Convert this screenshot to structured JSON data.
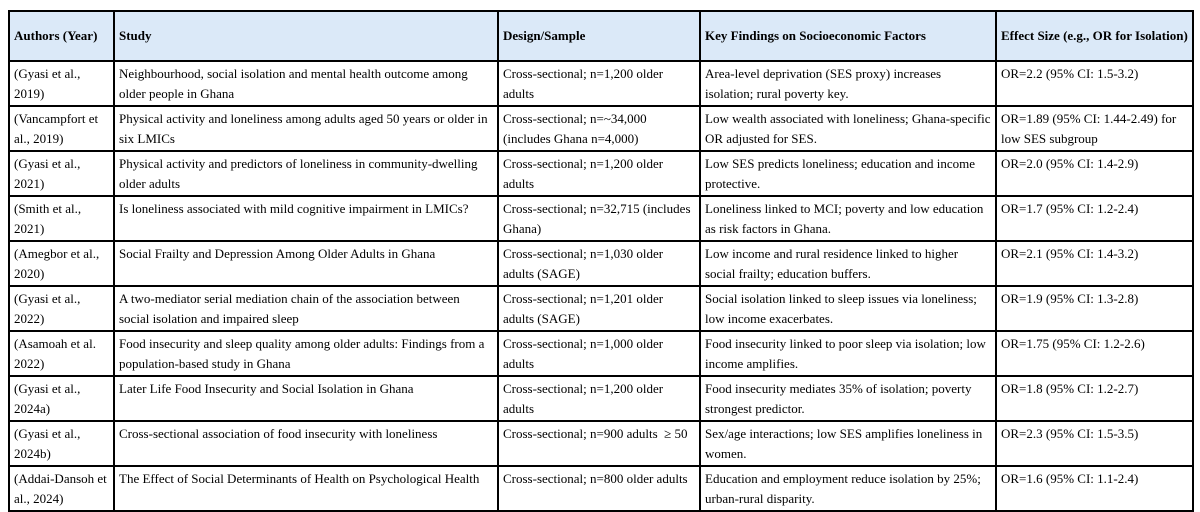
{
  "colors": {
    "header_bg": "#dbe9f8",
    "border": "#000000",
    "text": "#000000"
  },
  "table": {
    "columns": [
      {
        "label": "Authors (Year)"
      },
      {
        "label": "Study"
      },
      {
        "label": "Design/Sample"
      },
      {
        "label": "Key Findings on Socioeconomic Factors"
      },
      {
        "label": "Effect Size (e.g., OR for Isolation)"
      }
    ],
    "rows": [
      {
        "cells": [
          "(Gyasi et al., 2019)",
          "Neighbourhood, social isolation and mental health outcome among older people in Ghana",
          "Cross-sectional; n=1,200 older adults",
          "Area-level deprivation (SES proxy) increases isolation; rural poverty key.",
          "OR=2.2 (95% CI: 1.5-3.2)"
        ]
      },
      {
        "cells": [
          "(Vancampfort et al., 2019)",
          "Physical activity and loneliness among adults aged 50 years or older in six LMICs",
          "Cross-sectional; n=~34,000 (includes Ghana n=4,000)",
          "Low wealth associated with loneliness; Ghana-specific OR adjusted for SES.",
          "OR=1.89 (95% CI: 1.44-2.49) for low SES subgroup"
        ]
      },
      {
        "cells": [
          "(Gyasi et al., 2021)",
          "Physical activity and predictors of loneliness in community-dwelling older adults",
          "Cross-sectional; n=1,200 older adults",
          "Low SES predicts loneliness; education and income protective.",
          "OR=2.0 (95% CI: 1.4-2.9)"
        ]
      },
      {
        "cells": [
          "(Smith et al., 2021)",
          "Is loneliness associated with mild cognitive impairment in LMICs?",
          "Cross-sectional; n=32,715 (includes Ghana)",
          "Loneliness linked to MCI; poverty and low education as risk factors in Ghana.",
          "OR=1.7 (95% CI: 1.2-2.4)"
        ]
      },
      {
        "cells": [
          "(Amegbor et al., 2020)",
          "Social Frailty and Depression Among Older Adults in Ghana",
          "Cross-sectional; n=1,030 older adults (SAGE)",
          "Low income and rural residence linked to higher social frailty; education buffers.",
          "OR=2.1 (95% CI: 1.4-3.2)"
        ]
      },
      {
        "cells": [
          "(Gyasi et al., 2022)",
          "A two-mediator serial mediation chain of the association between social isolation and impaired sleep",
          "Cross-sectional; n=1,201 older adults (SAGE)",
          "Social isolation linked to sleep issues via loneliness; low income exacerbates.",
          "OR=1.9 (95% CI: 1.3-2.8)"
        ]
      },
      {
        "cells": [
          "(Asamoah et al. 2022)",
          "Food insecurity and sleep quality among older adults: Findings from a population-based study in Ghana",
          "Cross-sectional; n=1,000 older adults",
          "Food insecurity linked to poor sleep via isolation; low income amplifies.",
          "OR=1.75 (95% CI: 1.2-2.6)"
        ]
      },
      {
        "cells": [
          "(Gyasi et al., 2024a)",
          "Later Life Food Insecurity and Social Isolation in Ghana",
          "Cross-sectional; n=1,200 older adults",
          "Food insecurity mediates 35% of isolation; poverty strongest predictor.",
          "OR=1.8 (95% CI: 1.2-2.7)"
        ]
      },
      {
        "cells": [
          "(Gyasi et al., 2024b)",
          "Cross-sectional association of food insecurity with loneliness",
          "Cross-sectional; n=900 adults  ≥ 50",
          "Sex/age interactions; low SES amplifies loneliness in women.",
          "OR=2.3 (95% CI: 1.5-3.5)"
        ]
      },
      {
        "cells": [
          "(Addai-Dansoh et al., 2024)",
          "The Effect of Social Determinants of Health on Psychological Health",
          "Cross-sectional; n=800 older adults",
          "Education and employment reduce isolation by 25%; urban-rural disparity.",
          "OR=1.6 (95% CI: 1.1-2.4)"
        ]
      }
    ]
  }
}
